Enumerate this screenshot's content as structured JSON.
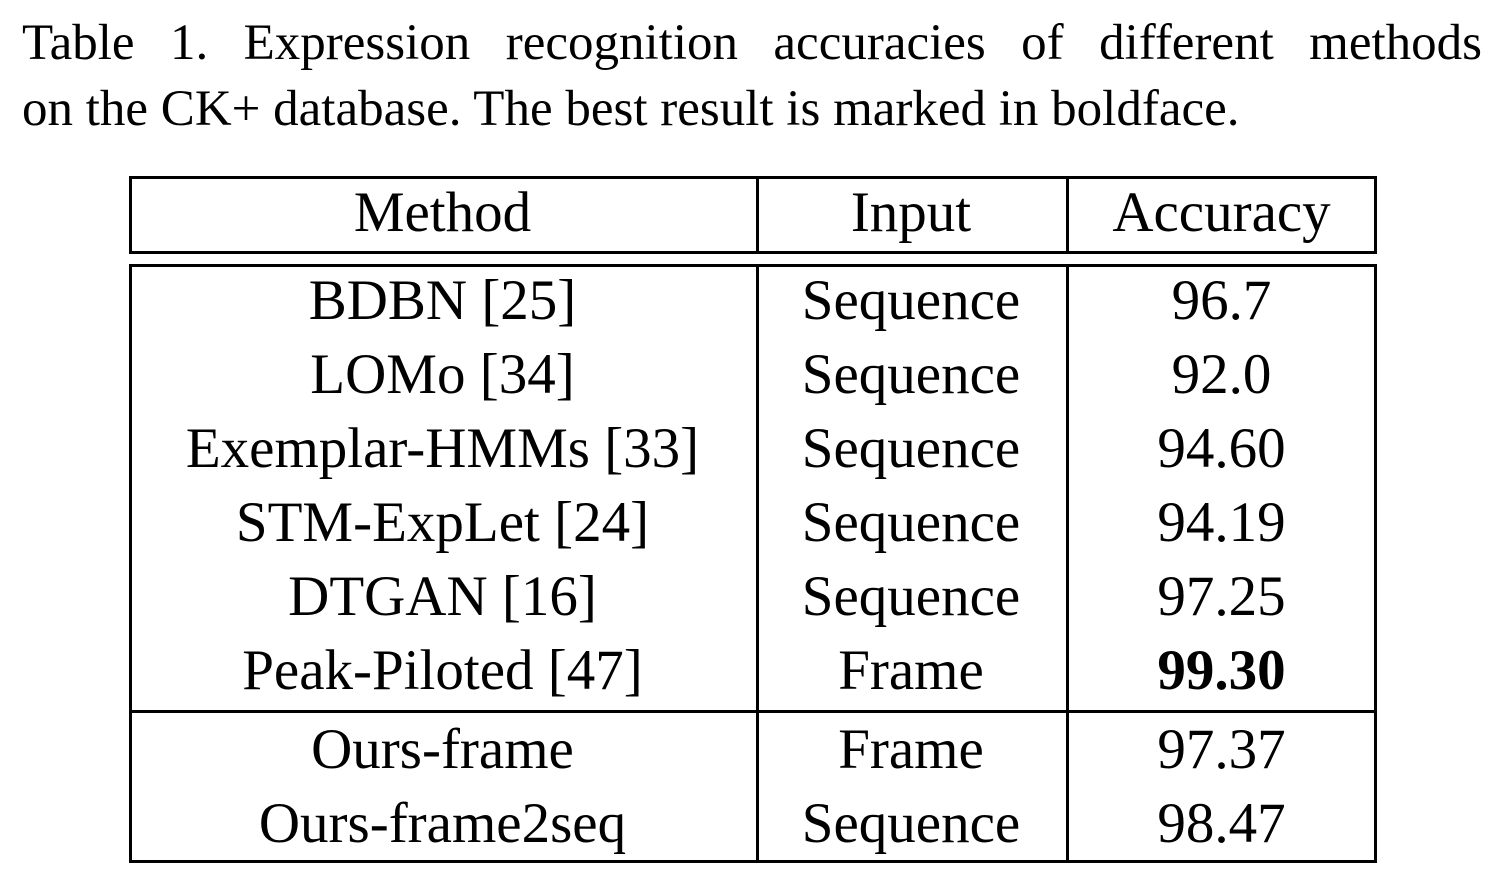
{
  "caption": {
    "line1": "Table 1. Expression recognition accuracies of different methods",
    "line2": "on the CK+ database. The best result is marked in boldface."
  },
  "table": {
    "headers": [
      "Method",
      "Input",
      "Accuracy"
    ],
    "groups": [
      [
        {
          "method": "BDBN [25]",
          "input": "Sequence",
          "accuracy": "96.7",
          "bold": false
        },
        {
          "method": "LOMo [34]",
          "input": "Sequence",
          "accuracy": "92.0",
          "bold": false
        },
        {
          "method": "Exemplar-HMMs [33]",
          "input": "Sequence",
          "accuracy": "94.60",
          "bold": false
        },
        {
          "method": "STM-ExpLet [24]",
          "input": "Sequence",
          "accuracy": "94.19",
          "bold": false
        },
        {
          "method": "DTGAN [16]",
          "input": "Sequence",
          "accuracy": "97.25",
          "bold": false
        },
        {
          "method": "Peak-Piloted [47]",
          "input": "Frame",
          "accuracy": "99.30",
          "bold": true
        }
      ],
      [
        {
          "method": "Ours-frame",
          "input": "Frame",
          "accuracy": "97.37",
          "bold": false
        },
        {
          "method": "Ours-frame2seq",
          "input": "Sequence",
          "accuracy": "98.47",
          "bold": false
        }
      ]
    ]
  }
}
